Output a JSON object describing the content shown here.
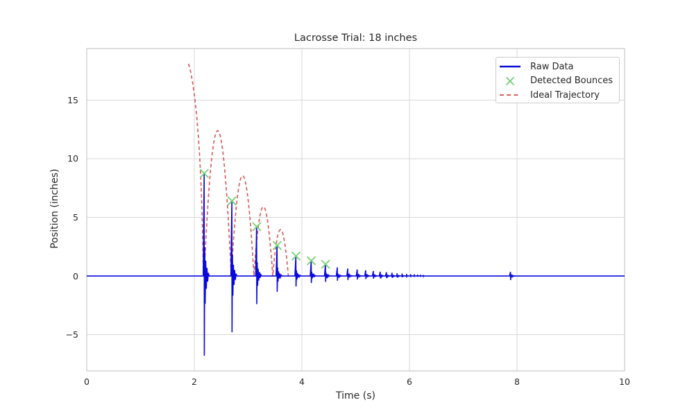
{
  "figure": {
    "title": "Lacrosse Trial: 18 inches",
    "xlabel": "Time (s)",
    "ylabel": "Position (inches)"
  },
  "legend": {
    "position": "upper right",
    "entries": [
      {
        "label": "Raw Data",
        "type": "solid-line",
        "color": "#0909dc"
      },
      {
        "label": "Detected Bounces",
        "type": "x-marker",
        "color": "#77d077"
      },
      {
        "label": "Ideal Trajectory",
        "type": "dashed-line",
        "color": "#d95f5f"
      }
    ]
  },
  "chart_data": {
    "type": "line",
    "title": "Lacrosse Trial: 18 inches",
    "xlabel": "Time (s)",
    "ylabel": "Position (inches)",
    "xlim": [
      0,
      10
    ],
    "ylim": [
      -8.1,
      19.4
    ],
    "xticks": [
      0,
      2,
      4,
      6,
      8,
      10
    ],
    "yticks": [
      -5,
      0,
      5,
      10,
      15
    ],
    "grid": true,
    "legend_position": "upper right",
    "colors": {
      "raw": "#0909dc",
      "bounces": "#77d077",
      "trajectory": "#d95f5f",
      "grid": "#d7d7d7",
      "spine": "#c9c9c9",
      "text": "#262626"
    },
    "series": {
      "raw_data": {
        "name": "Raw Data",
        "baseline": 0,
        "t_range": [
          0,
          10
        ],
        "bursts": [
          {
            "t": 2.185,
            "up": 8.7,
            "down": -6.8
          },
          {
            "t": 2.7,
            "up": 6.4,
            "down": -4.8
          },
          {
            "t": 3.16,
            "up": 4.2,
            "down": -2.4
          },
          {
            "t": 3.54,
            "up": 2.6,
            "down": -1.35
          },
          {
            "t": 3.89,
            "up": 1.7,
            "down": -0.9
          },
          {
            "t": 4.175,
            "up": 1.3,
            "down": -0.6
          },
          {
            "t": 4.44,
            "up": 1.0,
            "down": -0.5
          }
        ],
        "tail": {
          "t0": 4.66,
          "interval0": 0.195,
          "interval_ratio": 0.9,
          "amp0": 0.73,
          "amp_ratio": 0.87,
          "min_interval": 0.038,
          "down_ratio": 0.55
        },
        "blip": {
          "t": 7.88,
          "amp": 0.35
        },
        "burst_shape": [
          [
            -0.02,
            0,
            0
          ],
          [
            -0.002,
            1,
            0
          ],
          [
            0.001,
            0,
            1
          ],
          [
            0.009,
            0.28,
            0
          ],
          [
            0.017,
            0,
            0.35
          ],
          [
            0.027,
            0.15,
            0
          ],
          [
            0.038,
            0,
            0.16
          ],
          [
            0.05,
            0.08,
            0
          ],
          [
            0.063,
            0,
            0.07
          ],
          [
            0.076,
            0.03,
            0
          ],
          [
            0.09,
            0,
            0
          ]
        ]
      },
      "detected_bounces": {
        "name": "Detected Bounces",
        "points": [
          [
            2.185,
            8.75
          ],
          [
            2.7,
            6.4
          ],
          [
            3.16,
            4.2
          ],
          [
            3.54,
            2.6
          ],
          [
            3.89,
            1.7
          ],
          [
            4.175,
            1.3
          ],
          [
            4.44,
            1.0
          ]
        ]
      },
      "ideal_trajectory": {
        "name": "Ideal Trajectory",
        "drop_height_inches": 18,
        "fall": [
          [
            1.893,
            18.1
          ],
          [
            1.935,
            17.35
          ],
          [
            1.975,
            16.3
          ],
          [
            2.01,
            15.1
          ],
          [
            2.045,
            13.6
          ],
          [
            2.075,
            11.9
          ],
          [
            2.1,
            10.1
          ],
          [
            2.12,
            8.3
          ],
          [
            2.138,
            6.2
          ],
          [
            2.152,
            4.0
          ],
          [
            2.162,
            1.8
          ],
          [
            2.168,
            0.2
          ]
        ],
        "arcs": [
          {
            "t0": 2.18,
            "t1": 2.687,
            "peak": 12.4
          },
          {
            "t0": 2.687,
            "t1": 3.108,
            "peak": 8.55
          },
          {
            "t0": 3.108,
            "t1": 3.458,
            "peak": 5.9
          },
          {
            "t0": 3.458,
            "t1": 3.748,
            "peak": 3.95
          }
        ]
      }
    }
  }
}
